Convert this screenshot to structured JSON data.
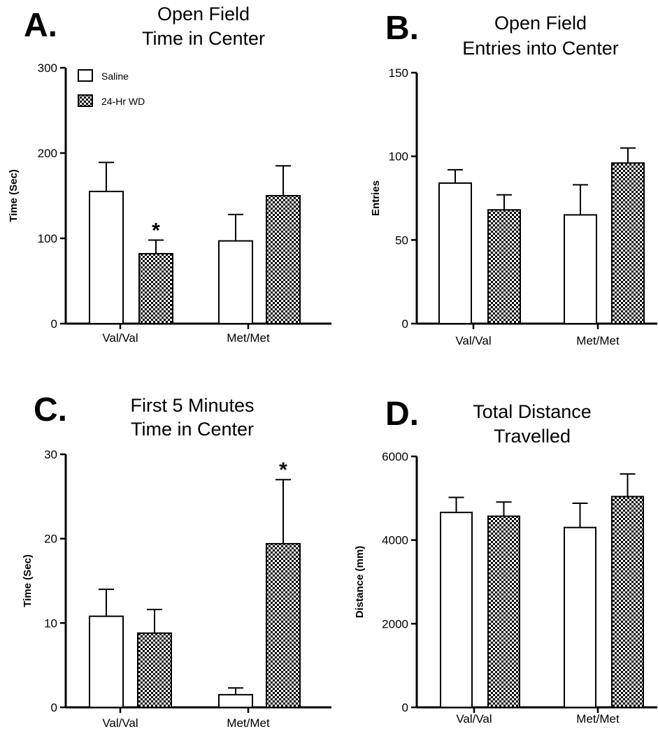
{
  "chart_data": [
    {
      "type": "bar",
      "panel": "A.",
      "title": [
        "Open Field",
        "Time in Center"
      ],
      "ylabel": "Time (Sec)",
      "categories": [
        "Val/Val",
        "Met/Met"
      ],
      "ylim": [
        0,
        300
      ],
      "yticks": [
        0,
        100,
        200,
        300
      ],
      "series": [
        {
          "name": "Saline",
          "pattern": "open",
          "values": [
            155,
            97
          ],
          "errors": [
            34,
            31
          ]
        },
        {
          "name": "24-Hr WD",
          "pattern": "checker",
          "values": [
            82,
            150
          ],
          "errors": [
            16,
            35
          ]
        }
      ],
      "annotations": [
        {
          "text": "*",
          "series": 1,
          "category": 0
        }
      ],
      "legend": {
        "position": "top-left",
        "entries": [
          "Saline",
          "24-Hr WD"
        ]
      }
    },
    {
      "type": "bar",
      "panel": "B.",
      "title": [
        "Open Field",
        "Entries into Center"
      ],
      "ylabel": "Entries",
      "categories": [
        "Val/Val",
        "Met/Met"
      ],
      "ylim": [
        0,
        150
      ],
      "yticks": [
        0,
        50,
        100,
        150
      ],
      "series": [
        {
          "name": "Saline",
          "pattern": "open",
          "values": [
            84,
            65
          ],
          "errors": [
            8,
            18
          ]
        },
        {
          "name": "24-Hr WD",
          "pattern": "checker",
          "values": [
            68,
            96
          ],
          "errors": [
            9,
            9
          ]
        }
      ],
      "annotations": []
    },
    {
      "type": "bar",
      "panel": "C.",
      "title": [
        "First 5 Minutes",
        "Time in Center"
      ],
      "ylabel": "Time (Sec)",
      "categories": [
        "Val/Val",
        "Met/Met"
      ],
      "ylim": [
        0,
        30
      ],
      "yticks": [
        0,
        10,
        20,
        30
      ],
      "series": [
        {
          "name": "Saline",
          "pattern": "open",
          "values": [
            10.8,
            1.5
          ],
          "errors": [
            3.2,
            0.8
          ]
        },
        {
          "name": "24-Hr WD",
          "pattern": "checker",
          "values": [
            8.8,
            19.4
          ],
          "errors": [
            2.8,
            7.6
          ]
        }
      ],
      "annotations": [
        {
          "text": "*",
          "series": 1,
          "category": 1
        }
      ]
    },
    {
      "type": "bar",
      "panel": "D.",
      "title": [
        "Total Distance",
        "Travelled"
      ],
      "ylabel": "Distance (mm)",
      "categories": [
        "Val/Val",
        "Met/Met"
      ],
      "ylim": [
        0,
        6000
      ],
      "yticks": [
        0,
        2000,
        4000,
        6000
      ],
      "series": [
        {
          "name": "Saline",
          "pattern": "open",
          "values": [
            4660,
            4300
          ],
          "errors": [
            360,
            580
          ]
        },
        {
          "name": "24-Hr WD",
          "pattern": "checker",
          "values": [
            4570,
            5040
          ],
          "errors": [
            340,
            540
          ]
        }
      ],
      "annotations": []
    }
  ]
}
